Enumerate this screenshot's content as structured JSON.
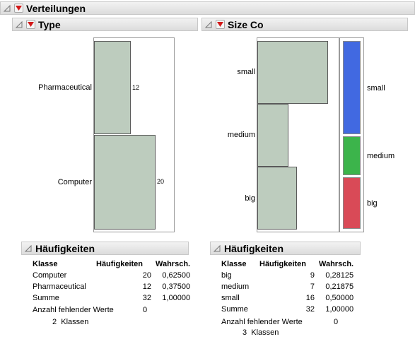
{
  "main": {
    "title": "Verteilungen"
  },
  "type_panel": {
    "title": "Type",
    "categories": [
      "Pharmaceutical",
      "Computer"
    ],
    "counts": [
      12,
      20
    ],
    "freq": {
      "title": "Häufigkeiten",
      "headers": [
        "Klasse",
        "Häufigkeiten",
        "Wahrsch."
      ],
      "rows": [
        [
          "Computer",
          "20",
          "0,62500"
        ],
        [
          "Pharmaceutical",
          "12",
          "0,37500"
        ],
        [
          "Summe",
          "32",
          "1,00000"
        ]
      ],
      "missing_label": "Anzahl fehlender Werte",
      "missing_value": "0",
      "classes_text": "2  Klassen"
    }
  },
  "size_panel": {
    "title": "Size Co",
    "categories": [
      "small",
      "medium",
      "big"
    ],
    "mosaic_labels": [
      "small",
      "medium",
      "big"
    ],
    "mosaic_colors": [
      "#4169e1",
      "#3cb44b",
      "#d94a57"
    ],
    "freq": {
      "title": "Häufigkeiten",
      "headers": [
        "Klasse",
        "Häufigkeiten",
        "Wahrsch."
      ],
      "rows": [
        [
          "big",
          "9",
          "0,28125"
        ],
        [
          "medium",
          "7",
          "0,21875"
        ],
        [
          "small",
          "16",
          "0,50000"
        ],
        [
          "Summe",
          "32",
          "1,00000"
        ]
      ],
      "missing_label": "Anzahl fehlender Werte",
      "missing_value": "0",
      "classes_text": "3  Klassen"
    }
  },
  "chart_data": [
    {
      "type": "bar",
      "orientation": "horizontal",
      "categories": [
        "Pharmaceutical",
        "Computer"
      ],
      "values": [
        12,
        20
      ],
      "data_labels": true
    },
    {
      "type": "bar",
      "orientation": "horizontal",
      "categories": [
        "small",
        "medium",
        "big"
      ],
      "values": [
        16,
        7,
        9
      ],
      "data_labels": false
    }
  ]
}
